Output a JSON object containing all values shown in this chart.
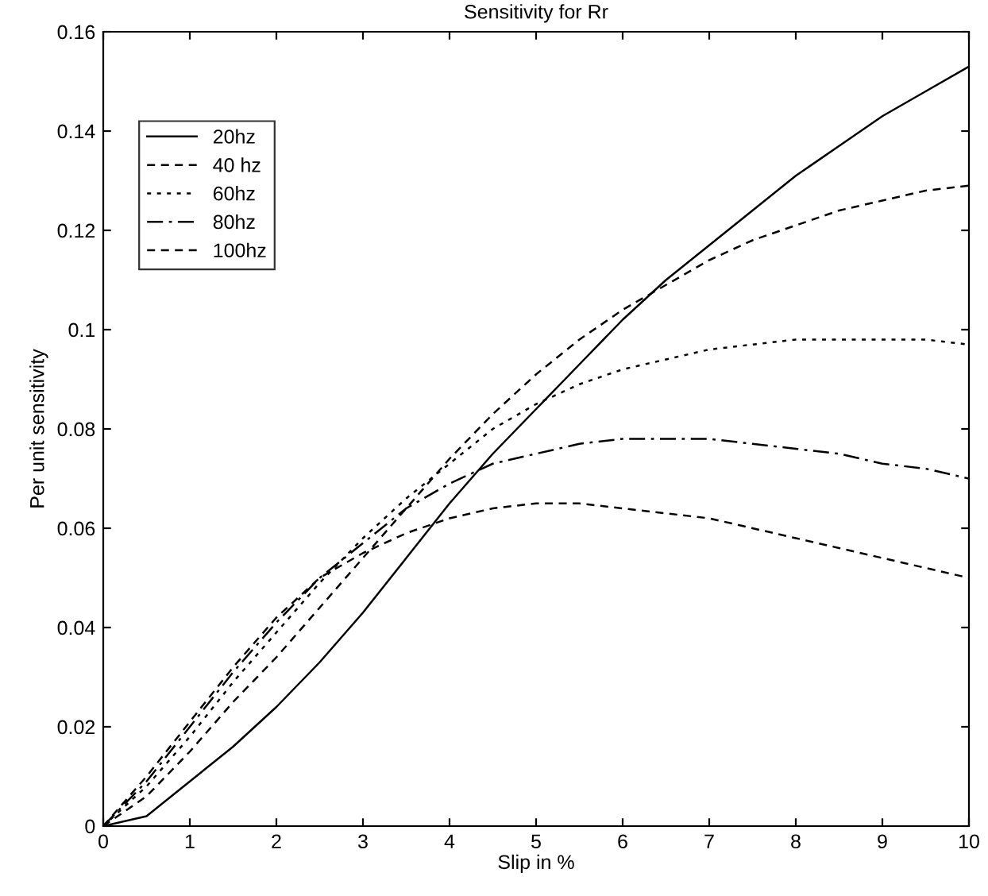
{
  "chart_data": {
    "type": "line",
    "title": "Sensitivity for Rr",
    "xlabel": "Slip in %",
    "ylabel": "Per unit sensitivity",
    "x": [
      0,
      0.5,
      1,
      1.5,
      2,
      2.5,
      3,
      3.5,
      4,
      4.5,
      5,
      5.5,
      6,
      6.5,
      7,
      7.5,
      8,
      8.5,
      9,
      9.5,
      10
    ],
    "series": [
      {
        "name": "20hz",
        "color": "#000000",
        "line_style": "solid",
        "values": [
          0,
          0.002,
          0.009,
          0.016,
          0.024,
          0.033,
          0.043,
          0.054,
          0.065,
          0.075,
          0.084,
          0.093,
          0.102,
          0.11,
          0.117,
          0.124,
          0.131,
          0.137,
          0.143,
          0.148,
          0.153
        ]
      },
      {
        "name": "40 hz",
        "color": "#000000",
        "line_style": "dashed",
        "values": [
          0,
          0.006,
          0.015,
          0.025,
          0.034,
          0.044,
          0.054,
          0.064,
          0.074,
          0.083,
          0.091,
          0.098,
          0.104,
          0.109,
          0.114,
          0.118,
          0.121,
          0.124,
          0.126,
          0.128,
          0.129
        ]
      },
      {
        "name": "60hz",
        "color": "#000000",
        "line_style": "dotted",
        "values": [
          0,
          0.008,
          0.018,
          0.029,
          0.039,
          0.049,
          0.058,
          0.066,
          0.073,
          0.08,
          0.085,
          0.089,
          0.092,
          0.094,
          0.096,
          0.097,
          0.098,
          0.098,
          0.098,
          0.098,
          0.097
        ]
      },
      {
        "name": "80hz",
        "color": "#000000",
        "line_style": "dashdot",
        "values": [
          0,
          0.009,
          0.02,
          0.031,
          0.041,
          0.05,
          0.057,
          0.064,
          0.069,
          0.073,
          0.075,
          0.077,
          0.078,
          0.078,
          0.078,
          0.077,
          0.076,
          0.075,
          0.073,
          0.072,
          0.07
        ]
      },
      {
        "name": "100hz",
        "color": "#000000",
        "line_style": "dashed",
        "values": [
          0,
          0.01,
          0.021,
          0.032,
          0.042,
          0.05,
          0.055,
          0.059,
          0.062,
          0.064,
          0.065,
          0.065,
          0.064,
          0.063,
          0.062,
          0.06,
          0.058,
          0.056,
          0.054,
          0.052,
          0.05
        ]
      }
    ],
    "xlim": [
      0,
      10
    ],
    "ylim": [
      0,
      0.16
    ],
    "xticks": [
      0,
      1,
      2,
      3,
      4,
      5,
      6,
      7,
      8,
      9,
      10
    ],
    "yticks": [
      0,
      0.02,
      0.04,
      0.06,
      0.08,
      0.1,
      0.12,
      0.14,
      0.16
    ],
    "grid": false,
    "legend": "top left",
    "marker": "none"
  }
}
